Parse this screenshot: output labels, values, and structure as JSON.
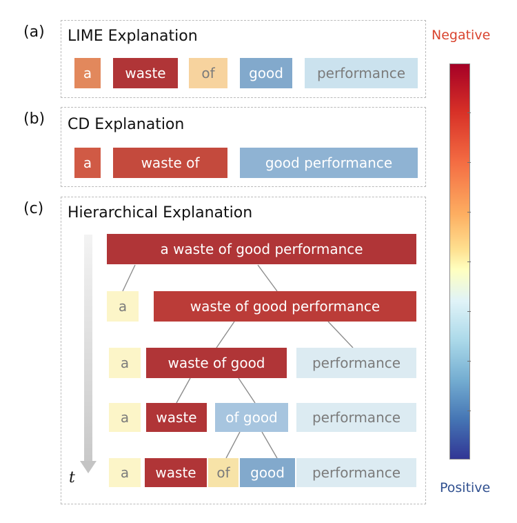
{
  "panels": {
    "a": {
      "label": "(a)",
      "title": "LIME Explanation",
      "tokens": [
        {
          "text": "a",
          "color": "#e2885c"
        },
        {
          "text": "waste",
          "color": "#b03537"
        },
        {
          "text": "of",
          "color": "#f7d39e"
        },
        {
          "text": "good",
          "color": "#82a9cc"
        },
        {
          "text": "performance",
          "color": "#cbe2ee"
        }
      ]
    },
    "b": {
      "label": "(b)",
      "title": "CD Explanation",
      "tokens": [
        {
          "text": "a",
          "color": "#d05a45"
        },
        {
          "text": "waste of",
          "color": "#c44a3d"
        },
        {
          "text": "good performance",
          "color": "#8fb3d3"
        }
      ]
    },
    "c": {
      "label": "(c)",
      "title": "Hierarchical Explanation",
      "time_label": "t",
      "rows": [
        [
          {
            "text": "a waste of good performance",
            "color": "#b03537"
          }
        ],
        [
          {
            "text": "a",
            "color": "#fcf5c8"
          },
          {
            "text": "waste of good performance",
            "color": "#bb3c38"
          }
        ],
        [
          {
            "text": "a",
            "color": "#fcf5c8"
          },
          {
            "text": "waste of good",
            "color": "#b03537"
          },
          {
            "text": "performance",
            "color": "#dcebf2"
          }
        ],
        [
          {
            "text": "a",
            "color": "#fcf5c8"
          },
          {
            "text": "waste",
            "color": "#b03537"
          },
          {
            "text": "of good",
            "color": "#a7c5df"
          },
          {
            "text": "performance",
            "color": "#dcebf2"
          }
        ],
        [
          {
            "text": "a",
            "color": "#fcf5c8"
          },
          {
            "text": "waste",
            "color": "#b03537"
          },
          {
            "text": "of",
            "color": "#f7e3a8"
          },
          {
            "text": "good",
            "color": "#82a9cc"
          },
          {
            "text": "performance",
            "color": "#dcebf2"
          }
        ]
      ]
    }
  },
  "colorbar": {
    "top_label": "Negative",
    "bottom_label": "Positive",
    "top_color": "#a50026",
    "bottom_color": "#313695"
  }
}
